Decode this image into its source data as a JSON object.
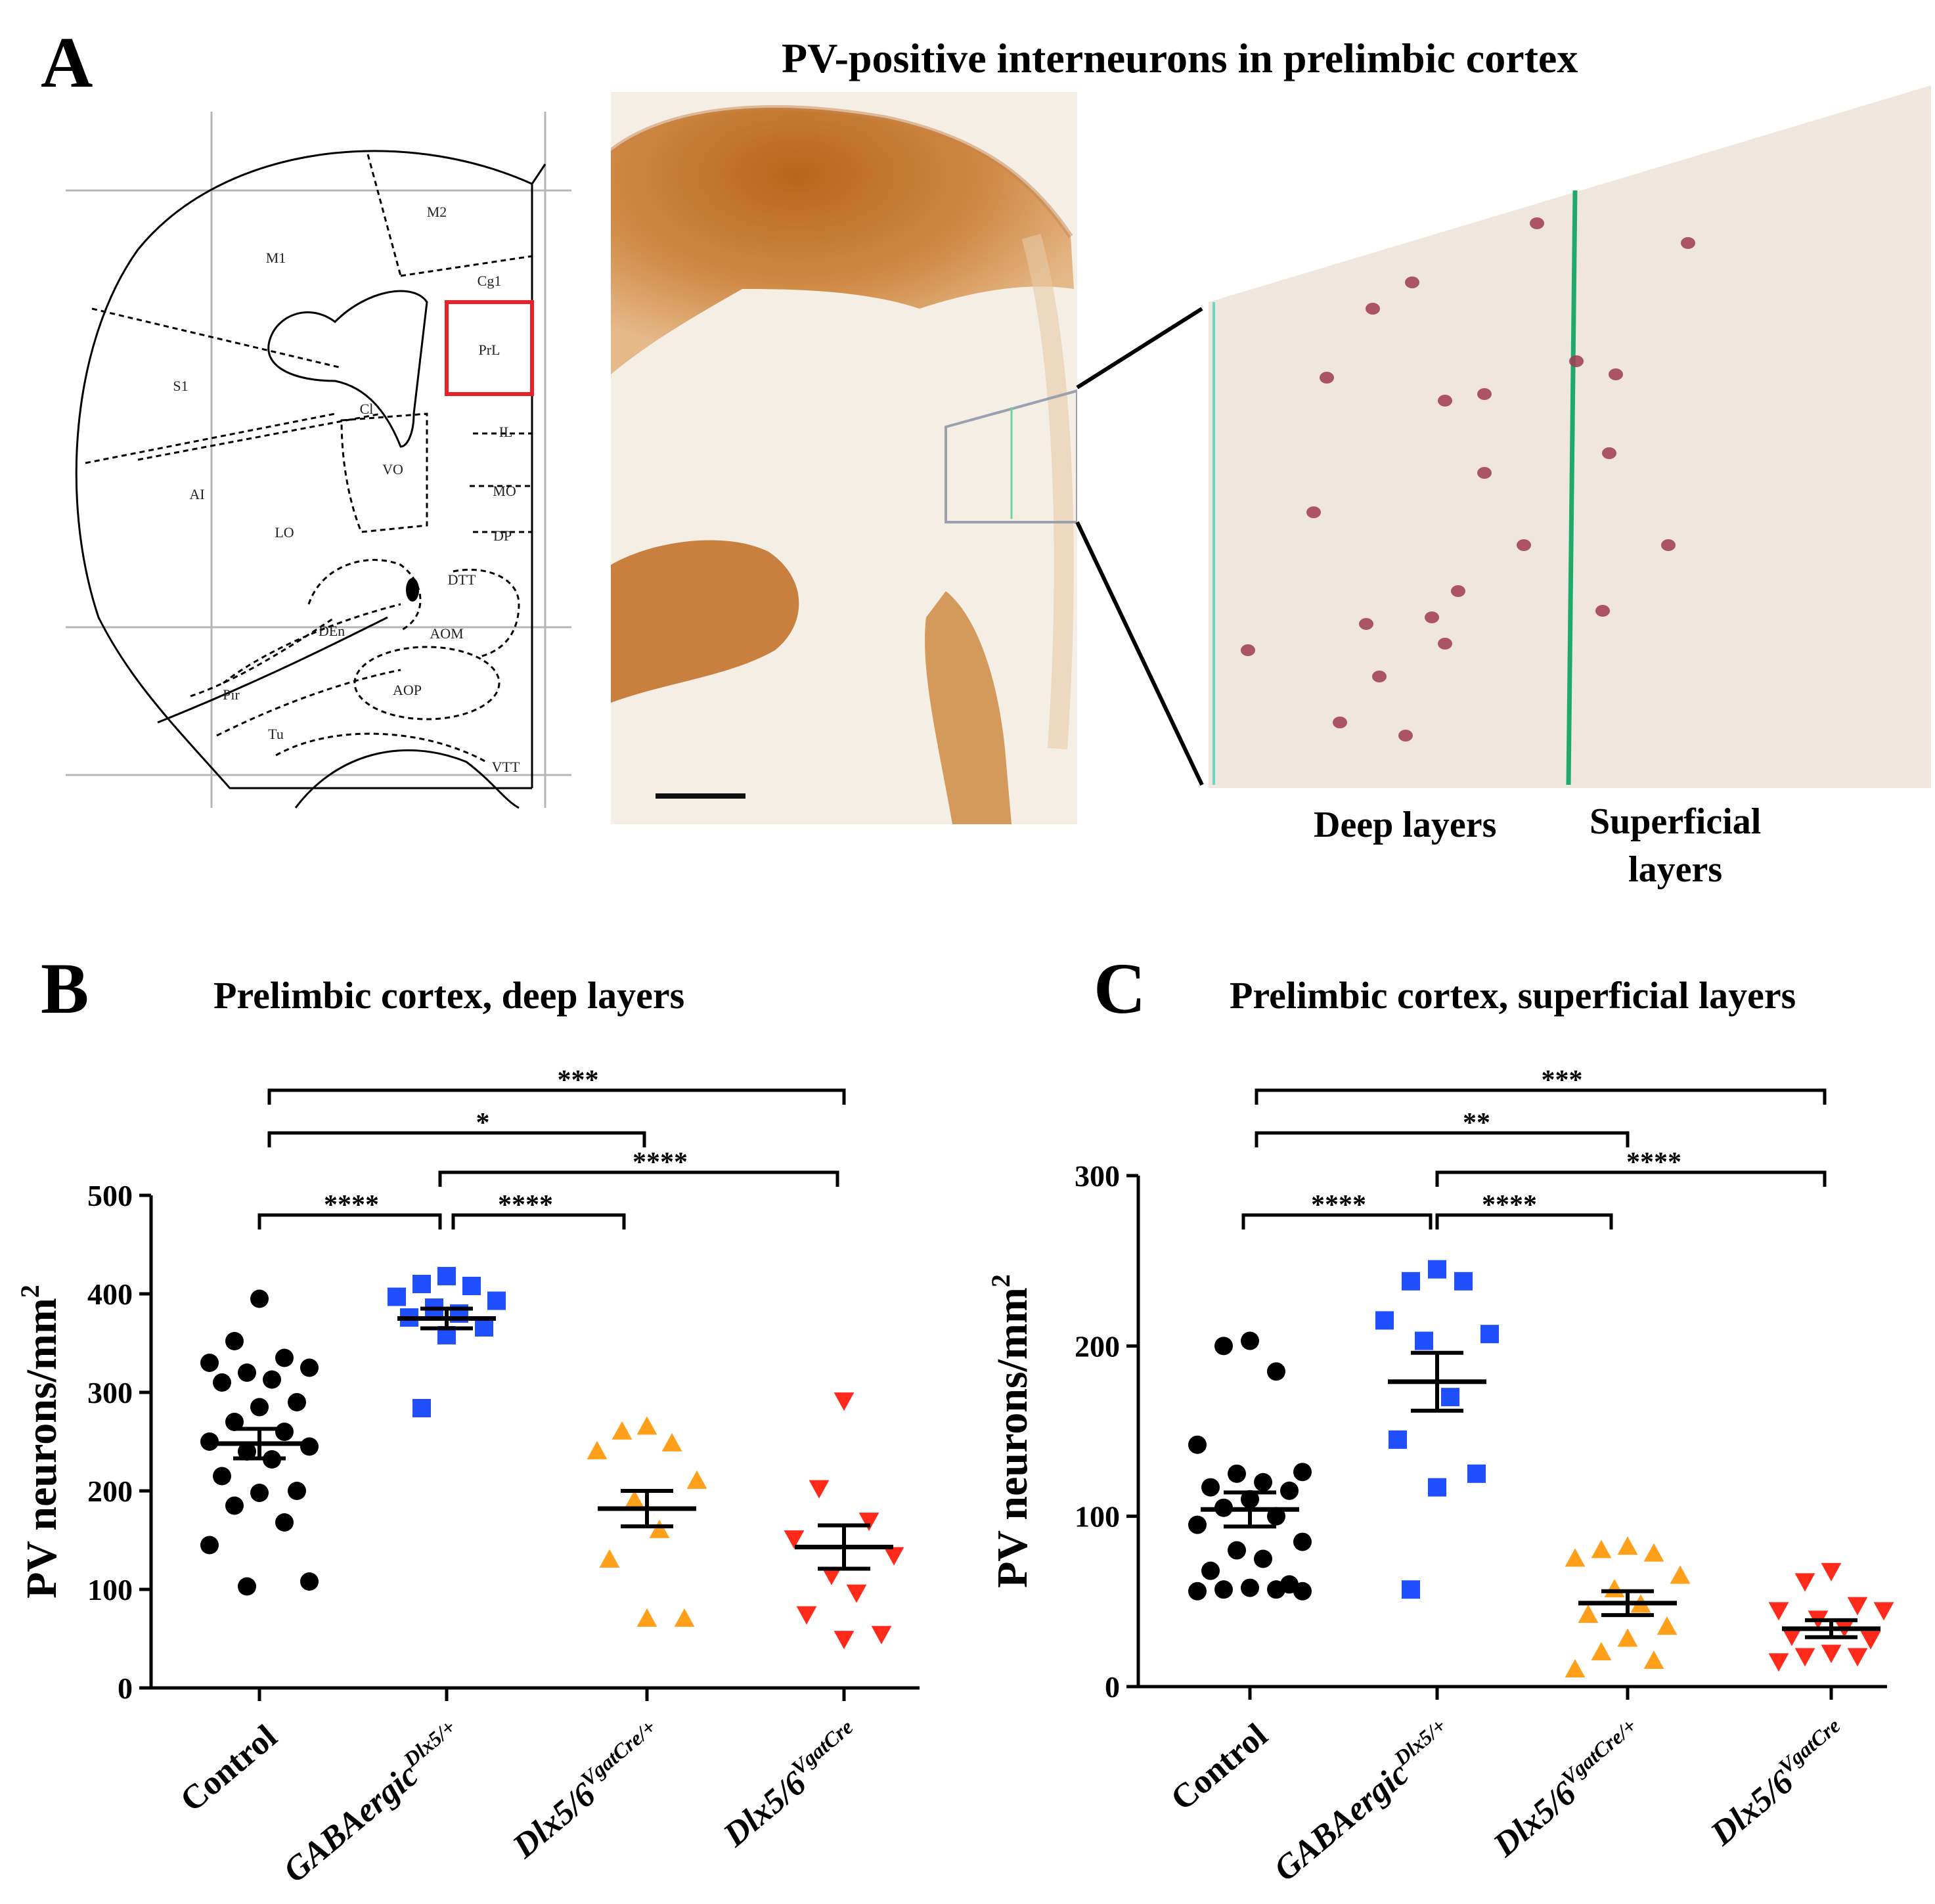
{
  "panel_a": {
    "letter": "A",
    "title": "PV-positive interneurons in prelimbic cortex",
    "atlas_regions": [
      "M2",
      "M1",
      "Cg1",
      "PrL",
      "S1",
      "Cl",
      "IL",
      "AI",
      "VO",
      "MO",
      "LO",
      "DP",
      "DTT",
      "DEn",
      "AOM",
      "AOP",
      "Pir",
      "Tu",
      "VTT"
    ],
    "zoom_labels": {
      "deep": "Deep layers",
      "superficial_line1": "Superficial",
      "superficial_line2": "layers"
    },
    "colors": {
      "stain_dark": "#b8651c",
      "stain_light": "#e3b07d",
      "cell": "#a03a52",
      "highlight_box": "#e8202a",
      "layer_line": "#1aa56a"
    }
  },
  "chart_data": [
    {
      "type": "scatter",
      "panel": "B",
      "title": "Prelimbic cortex, deep layers",
      "ylabel": "PV neurons/mm²",
      "ylabel_parts": {
        "main": "PV neurons/mm",
        "sup": "2"
      },
      "ylim": [
        0,
        500
      ],
      "yticks": [
        0,
        100,
        200,
        300,
        400,
        500
      ],
      "groups": [
        {
          "name": "Control",
          "base": "Control",
          "sup": "",
          "color": "#000000",
          "marker": "circle",
          "mean": 248,
          "sem": 15,
          "values": [
            395,
            352,
            335,
            330,
            325,
            320,
            313,
            310,
            290,
            285,
            270,
            260,
            250,
            245,
            240,
            232,
            215,
            200,
            198,
            185,
            168,
            145,
            108,
            103
          ]
        },
        {
          "name": "GABAergic Dlx5/+",
          "base": "GABAergic",
          "sup": "Dlx5/+",
          "color": "#1f4fff",
          "marker": "square",
          "mean": 375,
          "sem": 10,
          "values": [
            418,
            410,
            408,
            397,
            393,
            386,
            380,
            376,
            366,
            358,
            284
          ]
        },
        {
          "name": "Dlx5/6 VgatCre/+",
          "base": "Dlx5/6",
          "sup": "VgatCre/+",
          "color": "#ff9f1a",
          "marker": "triangle-up",
          "mean": 182,
          "sem": 18,
          "values": [
            265,
            260,
            248,
            240,
            210,
            190,
            160,
            130,
            70,
            70
          ]
        },
        {
          "name": "Dlx5/6 VgatCre",
          "base": "Dlx5/6",
          "sup": "VgatCre",
          "color": "#ff2a1a",
          "marker": "triangle-down",
          "mean": 143,
          "sem": 22,
          "values": [
            292,
            203,
            170,
            152,
            135,
            115,
            97,
            75,
            55,
            50
          ]
        }
      ],
      "significance": [
        {
          "from": 0,
          "to": 3,
          "label": "***"
        },
        {
          "from": 0,
          "to": 2,
          "label": "*"
        },
        {
          "from": 1,
          "to": 3,
          "label": "****"
        },
        {
          "from": 0,
          "to": 1,
          "label": "****"
        },
        {
          "from": 1,
          "to": 2,
          "label": "****"
        }
      ]
    },
    {
      "type": "scatter",
      "panel": "C",
      "title": "Prelimbic cortex, superficial layers",
      "ylabel": "PV neurons/mm²",
      "ylabel_parts": {
        "main": "PV neurons/mm",
        "sup": "2"
      },
      "ylim": [
        0,
        300
      ],
      "yticks": [
        0,
        100,
        200,
        300
      ],
      "groups": [
        {
          "name": "Control",
          "base": "Control",
          "sup": "",
          "color": "#000000",
          "marker": "circle",
          "mean": 104,
          "sem": 10,
          "values": [
            203,
            200,
            185,
            142,
            126,
            125,
            120,
            117,
            115,
            110,
            105,
            100,
            95,
            85,
            80,
            75,
            68,
            60,
            58,
            57,
            56,
            56,
            57
          ]
        },
        {
          "name": "GABAergic Dlx5/+",
          "base": "GABAergic",
          "sup": "Dlx5/+",
          "color": "#1f4fff",
          "marker": "square",
          "mean": 179,
          "sem": 17,
          "values": [
            245,
            238,
            238,
            215,
            207,
            203,
            170,
            145,
            125,
            117,
            57
          ]
        },
        {
          "name": "Dlx5/6 VgatCre/+",
          "base": "Dlx5/6",
          "sup": "VgatCre/+",
          "color": "#ff9f1a",
          "marker": "triangle-up",
          "mean": 49,
          "sem": 7,
          "values": [
            82,
            80,
            78,
            75,
            65,
            57,
            48,
            42,
            35,
            28,
            20,
            15,
            10
          ]
        },
        {
          "name": "Dlx5/6 VgatCre",
          "base": "Dlx5/6",
          "sup": "VgatCre",
          "color": "#ff2a1a",
          "marker": "triangle-down",
          "mean": 34,
          "sem": 5,
          "values": [
            68,
            62,
            48,
            45,
            45,
            40,
            35,
            30,
            28,
            20,
            18,
            18,
            15
          ]
        }
      ],
      "significance": [
        {
          "from": 0,
          "to": 3,
          "label": "***"
        },
        {
          "from": 0,
          "to": 2,
          "label": "**"
        },
        {
          "from": 1,
          "to": 3,
          "label": "****"
        },
        {
          "from": 0,
          "to": 1,
          "label": "****"
        },
        {
          "from": 1,
          "to": 2,
          "label": "****"
        }
      ]
    }
  ]
}
